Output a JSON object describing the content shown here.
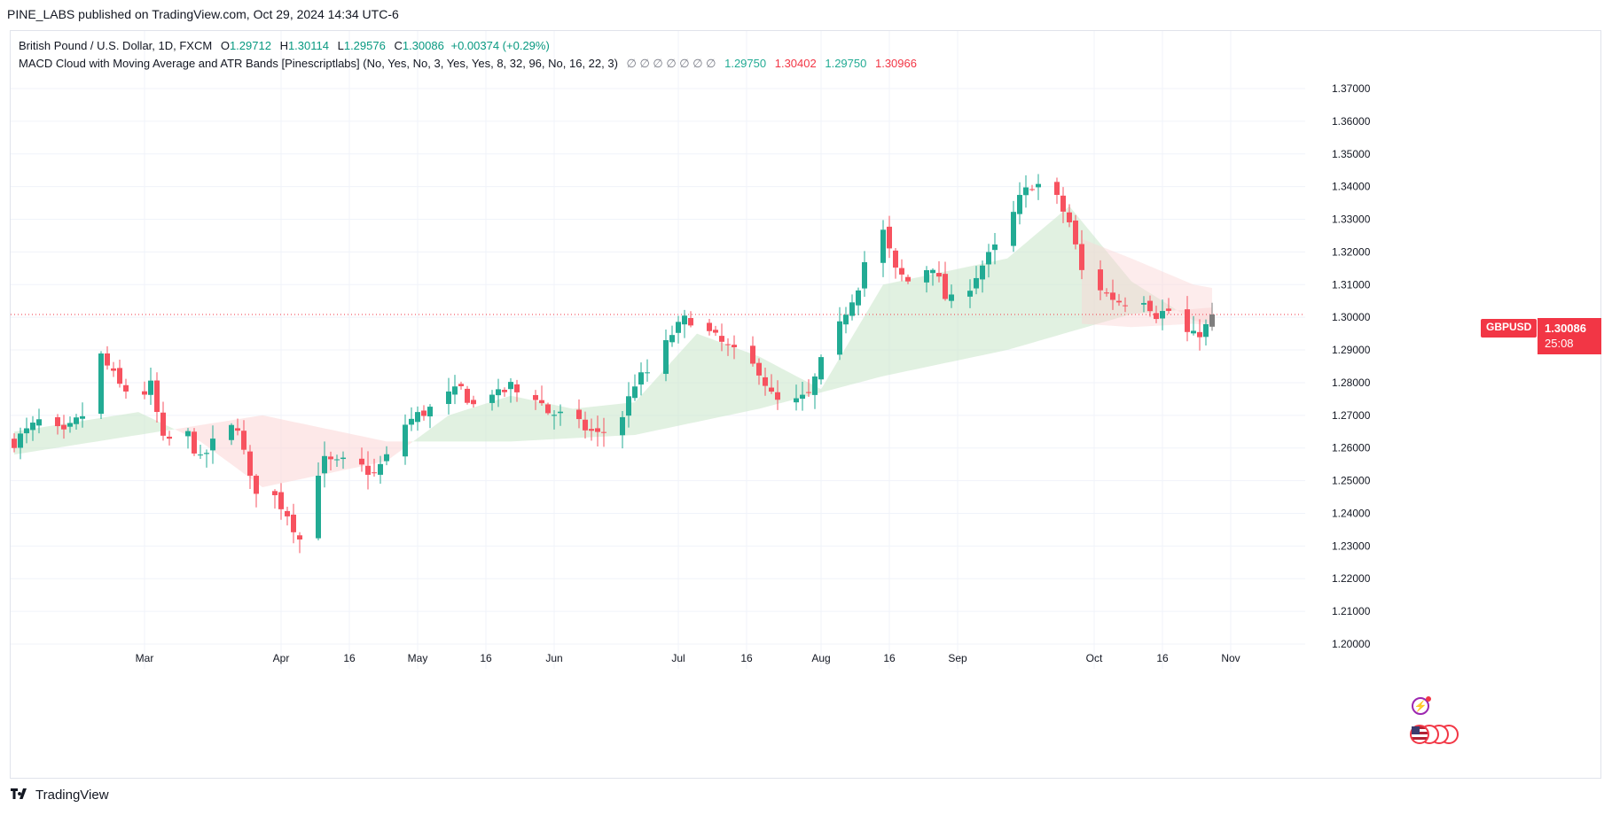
{
  "header": {
    "text": "PINE_LABS published on TradingView.com, Oct 29, 2024 14:34 UTC-6"
  },
  "legend": {
    "symbol_line": "British Pound / U.S. Dollar, 1D, FXCM",
    "o_label": "O",
    "o_value": "1.29712",
    "h_label": "H",
    "h_value": "1.30114",
    "l_label": "L",
    "l_value": "1.29576",
    "c_label": "C",
    "c_value": "1.30086",
    "change": "+0.00374 (+0.29%)",
    "indicator_name": "MACD Cloud with Moving Average and ATR Bands [Pinescriptlabs] (No, Yes, No, 3, Yes, Yes, 8, 32, 96, No, 16, 22, 3)",
    "indicator_zeros": "∅  ∅  ∅  ∅  ∅  ∅  ∅",
    "ind_v1": "1.29750",
    "ind_v2": "1.30402",
    "ind_v3": "1.29750",
    "ind_v4": "1.30966"
  },
  "price_tag": {
    "symbol": "GBPUSD",
    "price": "1.30086",
    "countdown": "25:08"
  },
  "footer": {
    "brand": "TradingView"
  },
  "colors": {
    "up": "#22ab94",
    "down": "#f7525f",
    "neutral": "#7e7e7e",
    "cloud_up": "#c8e6c9",
    "cloud_down": "#fbd5d5",
    "grid": "#f0f3fa"
  },
  "icons": [
    "lightning-icon",
    "us-flag-icon",
    "tradingview-logo-icon"
  ],
  "chart_data": {
    "type": "candlestick",
    "y_ticks": [
      "1.37000",
      "1.36000",
      "1.35000",
      "1.34000",
      "1.33000",
      "1.32000",
      "1.31000",
      "1.30000",
      "1.29000",
      "1.28000",
      "1.27000",
      "1.26000",
      "1.25000",
      "1.24000",
      "1.23000",
      "1.22000",
      "1.21000",
      "1.20000"
    ],
    "x_ticks": [
      {
        "label": "Mar",
        "day": 21
      },
      {
        "label": "Apr",
        "day": 43
      },
      {
        "label": "16",
        "day": 54
      },
      {
        "label": "May",
        "day": 65
      },
      {
        "label": "16",
        "day": 76
      },
      {
        "label": "Jun",
        "day": 87
      },
      {
        "label": "Jul",
        "day": 107
      },
      {
        "label": "16",
        "day": 118
      },
      {
        "label": "Aug",
        "day": 130
      },
      {
        "label": "16",
        "day": 141
      },
      {
        "label": "Sep",
        "day": 152
      },
      {
        "label": "Oct",
        "day": 174
      },
      {
        "label": "16",
        "day": 185
      },
      {
        "label": "Nov",
        "day": 196
      }
    ],
    "ylim": [
      1.19,
      1.375
    ],
    "xlim": [
      0,
      210
    ],
    "last_price": 1.30086,
    "anchors": [
      [
        0,
        1.262
      ],
      [
        4,
        1.268
      ],
      [
        8,
        1.264
      ],
      [
        12,
        1.272
      ],
      [
        14,
        1.288
      ],
      [
        17,
        1.279
      ],
      [
        20,
        1.275
      ],
      [
        22,
        1.279
      ],
      [
        24,
        1.262
      ],
      [
        28,
        1.264
      ],
      [
        30,
        1.256
      ],
      [
        33,
        1.264
      ],
      [
        36,
        1.267
      ],
      [
        38,
        1.25
      ],
      [
        40,
        1.245
      ],
      [
        42,
        1.245
      ],
      [
        44,
        1.24
      ],
      [
        46,
        1.232
      ],
      [
        48,
        1.25
      ],
      [
        50,
        1.256
      ],
      [
        52,
        1.255
      ],
      [
        54,
        1.256
      ],
      [
        56,
        1.254
      ],
      [
        58,
        1.252
      ],
      [
        60,
        1.257
      ],
      [
        62,
        1.266
      ],
      [
        65,
        1.27
      ],
      [
        68,
        1.273
      ],
      [
        70,
        1.276
      ],
      [
        72,
        1.278
      ],
      [
        74,
        1.273
      ],
      [
        76,
        1.279
      ],
      [
        78,
        1.276
      ],
      [
        80,
        1.279
      ],
      [
        82,
        1.275
      ],
      [
        84,
        1.276
      ],
      [
        86,
        1.271
      ],
      [
        88,
        1.27
      ],
      [
        90,
        1.268
      ],
      [
        92,
        1.266
      ],
      [
        94,
        1.264
      ],
      [
        96,
        1.266
      ],
      [
        98,
        1.27
      ],
      [
        100,
        1.28
      ],
      [
        102,
        1.283
      ],
      [
        104,
        1.288
      ],
      [
        106,
        1.295
      ],
      [
        108,
        1.299
      ],
      [
        110,
        1.3
      ],
      [
        112,
        1.295
      ],
      [
        114,
        1.292
      ],
      [
        116,
        1.289
      ],
      [
        118,
        1.286
      ],
      [
        120,
        1.284
      ],
      [
        122,
        1.276
      ],
      [
        124,
        1.272
      ],
      [
        126,
        1.274
      ],
      [
        128,
        1.276
      ],
      [
        130,
        1.286
      ],
      [
        132,
        1.292
      ],
      [
        134,
        1.302
      ],
      [
        136,
        1.31
      ],
      [
        138,
        1.324
      ],
      [
        140,
        1.326
      ],
      [
        142,
        1.314
      ],
      [
        144,
        1.311
      ],
      [
        146,
        1.314
      ],
      [
        148,
        1.316
      ],
      [
        150,
        1.306
      ],
      [
        152,
        1.304
      ],
      [
        154,
        1.31
      ],
      [
        156,
        1.316
      ],
      [
        158,
        1.321
      ],
      [
        160,
        1.327
      ],
      [
        162,
        1.336
      ],
      [
        164,
        1.341
      ],
      [
        166,
        1.34
      ],
      [
        168,
        1.336
      ],
      [
        170,
        1.329
      ],
      [
        172,
        1.314
      ],
      [
        174,
        1.311
      ],
      [
        176,
        1.307
      ],
      [
        178,
        1.305
      ],
      [
        180,
        1.305
      ],
      [
        182,
        1.306
      ],
      [
        184,
        1.301
      ],
      [
        186,
        1.302
      ],
      [
        188,
        1.296
      ],
      [
        190,
        1.294
      ],
      [
        192,
        1.297
      ],
      [
        193,
        1.30086
      ]
    ],
    "ma_fast": [
      [
        0,
        1.265
      ],
      [
        10,
        1.268
      ],
      [
        20,
        1.271
      ],
      [
        30,
        1.262
      ],
      [
        40,
        1.248
      ],
      [
        50,
        1.252
      ],
      [
        60,
        1.256
      ],
      [
        70,
        1.27
      ],
      [
        80,
        1.276
      ],
      [
        90,
        1.272
      ],
      [
        100,
        1.274
      ],
      [
        110,
        1.295
      ],
      [
        120,
        1.288
      ],
      [
        130,
        1.278
      ],
      [
        140,
        1.31
      ],
      [
        150,
        1.314
      ],
      [
        160,
        1.318
      ],
      [
        170,
        1.334
      ],
      [
        180,
        1.311
      ],
      [
        190,
        1.299
      ],
      [
        193,
        1.298
      ]
    ],
    "ma_slow": [
      [
        0,
        1.258
      ],
      [
        20,
        1.264
      ],
      [
        40,
        1.27
      ],
      [
        60,
        1.262
      ],
      [
        80,
        1.262
      ],
      [
        100,
        1.264
      ],
      [
        120,
        1.272
      ],
      [
        140,
        1.282
      ],
      [
        160,
        1.29
      ],
      [
        180,
        1.301
      ],
      [
        193,
        1.303
      ]
    ],
    "band_upper": [
      [
        172,
        1.324
      ],
      [
        180,
        1.318
      ],
      [
        190,
        1.31
      ],
      [
        193,
        1.309
      ]
    ],
    "band_lower": [
      [
        172,
        1.298
      ],
      [
        180,
        1.297
      ],
      [
        190,
        1.298
      ],
      [
        193,
        1.2975
      ]
    ]
  }
}
